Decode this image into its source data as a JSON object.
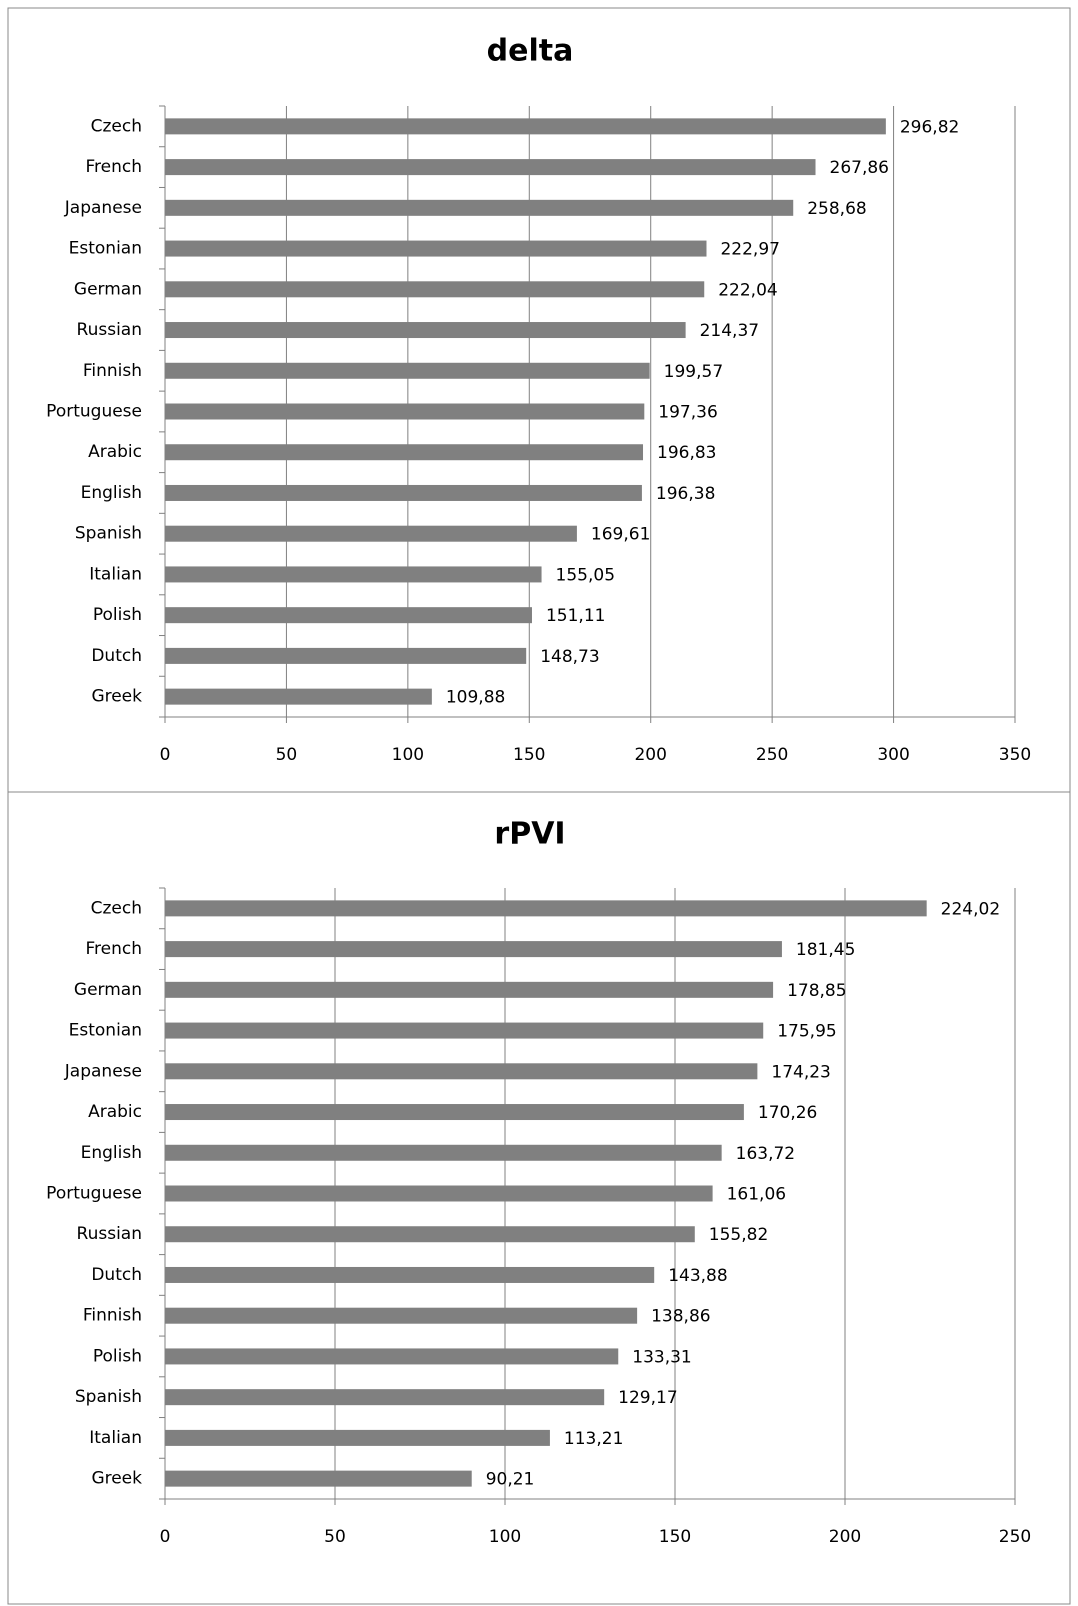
{
  "chart_data": [
    {
      "type": "bar",
      "orientation": "horizontal",
      "title": "delta",
      "color": "#808080",
      "grid": true,
      "categories": [
        "Czech",
        "French",
        "Japanese",
        "Estonian",
        "German",
        "Russian",
        "Finnish",
        "Portuguese",
        "Arabic",
        "English",
        "Spanish",
        "Italian",
        "Polish",
        "Dutch",
        "Greek"
      ],
      "values": [
        296.82,
        267.86,
        258.68,
        222.97,
        222.04,
        214.37,
        199.57,
        197.36,
        196.83,
        196.38,
        169.61,
        155.05,
        151.11,
        148.73,
        109.88
      ],
      "value_labels": [
        "296,82",
        "267,86",
        "258,68",
        "222,97",
        "222,04",
        "214,37",
        "199,57",
        "197,36",
        "196,83",
        "196,38",
        "169,61",
        "155,05",
        "151,11",
        "148,73",
        "109,88"
      ],
      "xlim": [
        0,
        350
      ],
      "xticks": [
        0,
        50,
        100,
        150,
        200,
        250,
        300,
        350
      ]
    },
    {
      "type": "bar",
      "orientation": "horizontal",
      "title": "rPVI",
      "color": "#808080",
      "grid": true,
      "categories": [
        "Czech",
        "French",
        "German",
        "Estonian",
        "Japanese",
        "Arabic",
        "English",
        "Portuguese",
        "Russian",
        "Dutch",
        "Finnish",
        "Polish",
        "Spanish",
        "Italian",
        "Greek"
      ],
      "values": [
        224.02,
        181.45,
        178.85,
        175.95,
        174.23,
        170.26,
        163.72,
        161.06,
        155.82,
        143.88,
        138.86,
        133.31,
        129.17,
        113.21,
        90.21
      ],
      "value_labels": [
        "224,02",
        "181,45",
        "178,85",
        "175,95",
        "174,23",
        "170,26",
        "163,72",
        "161,06",
        "155,82",
        "143,88",
        "138,86",
        "133,31",
        "129,17",
        "113,21",
        "90,21"
      ],
      "xlim": [
        0,
        250
      ],
      "xticks": [
        0,
        50,
        100,
        150,
        200,
        250
      ]
    }
  ]
}
